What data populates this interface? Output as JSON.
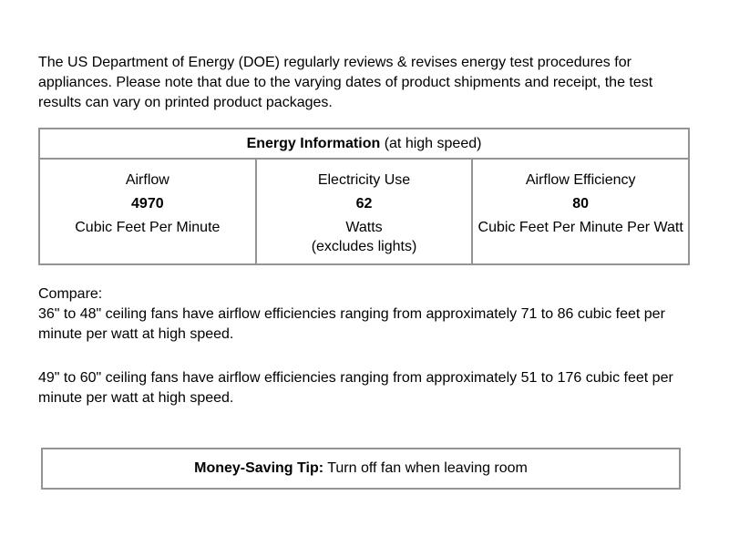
{
  "intro": {
    "text": "The US Department of Energy (DOE) regularly reviews & revises energy test procedures for appliances. Please note that due to the varying dates of product shipments and receipt, the test results can vary on printed product packages."
  },
  "energy_table": {
    "header_bold": "Energy Information",
    "header_suffix": "(at high speed)",
    "columns": [
      {
        "label": "Airflow",
        "value": "4970",
        "unit": "Cubic Feet Per Minute"
      },
      {
        "label": "Electricity Use",
        "value": "62",
        "unit": "Watts",
        "unit_note": "(excludes lights)"
      },
      {
        "label": "Airflow Efficiency",
        "value": "80",
        "unit": "Cubic Feet Per Minute Per Watt"
      }
    ]
  },
  "compare": {
    "heading": "Compare:",
    "paragraph1": "36\" to 48\" ceiling fans have airflow efficiencies ranging from approximately 71 to 86 cubic feet per minute per watt at high speed.",
    "paragraph2": "49\" to 60\" ceiling fans have airflow efficiencies ranging from approximately 51 to 176 cubic feet per minute per watt at high speed."
  },
  "tip": {
    "label": "Money-Saving Tip:",
    "text": "Turn off fan when leaving room"
  },
  "colors": {
    "border": "#949494",
    "text": "#000000",
    "background": "#ffffff"
  }
}
